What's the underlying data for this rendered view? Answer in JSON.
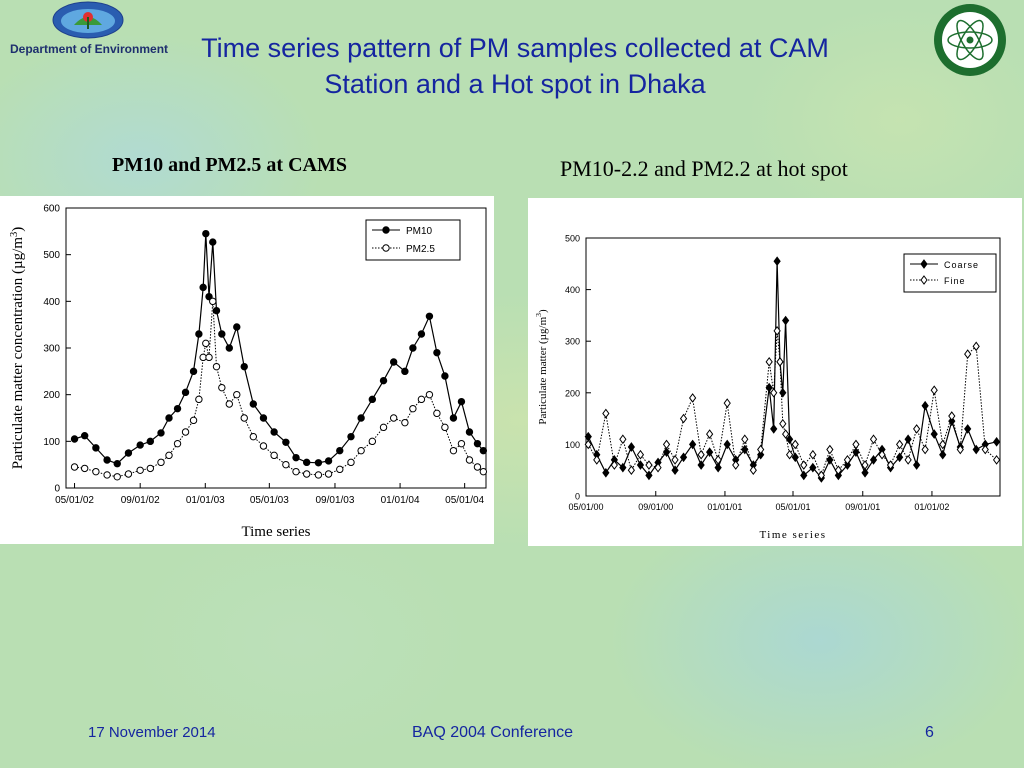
{
  "header": {
    "org_name": "Department of Environment",
    "title": "Time series pattern of PM samples collected at CAM Station and a Hot spot in Dhaka",
    "logo_left": "department-of-environment-logo",
    "logo_right": "atomic-energy-commission-logo"
  },
  "subtitles": {
    "left": "PM10 and PM2.5 at CAMS",
    "right": "PM10-2.2 and PM2.2 at hot spot"
  },
  "footer": {
    "date": "17 November 2014",
    "conference": "BAQ 2004 Conference",
    "page": "6"
  },
  "colors": {
    "title": "#1525a0",
    "footer": "#1525a0",
    "background": "#b9dfb3"
  },
  "chart_data": [
    {
      "type": "line",
      "xlabel": "Time series",
      "ylabel": "Particulate matter concentration (µg/m",
      "ylabel_sup": "3",
      "ylabel_end": ")",
      "ylim": [
        0,
        600
      ],
      "yticks": [
        0,
        100,
        200,
        300,
        400,
        500,
        600
      ],
      "xlim": [
        "2002-04-15",
        "2004-06-10"
      ],
      "xticks": [
        "2002-05-01",
        "2002-09-01",
        "2003-01-01",
        "2003-05-01",
        "2003-09-01",
        "2004-01-01",
        "2004-05-01"
      ],
      "xtick_labels": [
        "05/01/02",
        "09/01/02",
        "01/01/03",
        "05/01/03",
        "09/01/03",
        "01/01/04",
        "05/01/04"
      ],
      "grid": false,
      "legend_position": "top-right",
      "legend": [
        "PM10",
        "PM2.5"
      ],
      "series": [
        {
          "name": "PM10",
          "marker": "filled-circle",
          "line": "solid",
          "points": [
            [
              "2002-05-01",
              105
            ],
            [
              "2002-05-20",
              112
            ],
            [
              "2002-06-10",
              86
            ],
            [
              "2002-07-01",
              60
            ],
            [
              "2002-07-20",
              52
            ],
            [
              "2002-08-10",
              75
            ],
            [
              "2002-09-01",
              92
            ],
            [
              "2002-09-20",
              100
            ],
            [
              "2002-10-10",
              118
            ],
            [
              "2002-10-25",
              150
            ],
            [
              "2002-11-10",
              170
            ],
            [
              "2002-11-25",
              205
            ],
            [
              "2002-12-10",
              250
            ],
            [
              "2002-12-20",
              330
            ],
            [
              "2002-12-28",
              430
            ],
            [
              "2003-01-02",
              545
            ],
            [
              "2003-01-08",
              410
            ],
            [
              "2003-01-15",
              527
            ],
            [
              "2003-01-22",
              380
            ],
            [
              "2003-02-01",
              330
            ],
            [
              "2003-02-15",
              300
            ],
            [
              "2003-03-01",
              345
            ],
            [
              "2003-03-15",
              260
            ],
            [
              "2003-04-01",
              180
            ],
            [
              "2003-04-20",
              150
            ],
            [
              "2003-05-10",
              120
            ],
            [
              "2003-06-01",
              98
            ],
            [
              "2003-06-20",
              65
            ],
            [
              "2003-07-10",
              55
            ],
            [
              "2003-08-01",
              54
            ],
            [
              "2003-08-20",
              58
            ],
            [
              "2003-09-10",
              80
            ],
            [
              "2003-10-01",
              110
            ],
            [
              "2003-10-20",
              150
            ],
            [
              "2003-11-10",
              190
            ],
            [
              "2003-12-01",
              230
            ],
            [
              "2003-12-20",
              270
            ],
            [
              "2004-01-10",
              250
            ],
            [
              "2004-01-25",
              300
            ],
            [
              "2004-02-10",
              330
            ],
            [
              "2004-02-25",
              368
            ],
            [
              "2004-03-10",
              290
            ],
            [
              "2004-03-25",
              240
            ],
            [
              "2004-04-10",
              150
            ],
            [
              "2004-04-25",
              185
            ],
            [
              "2004-05-10",
              120
            ],
            [
              "2004-05-25",
              95
            ],
            [
              "2004-06-05",
              80
            ]
          ]
        },
        {
          "name": "PM2.5",
          "marker": "open-circle",
          "line": "dotted",
          "points": [
            [
              "2002-05-01",
              45
            ],
            [
              "2002-05-20",
              42
            ],
            [
              "2002-06-10",
              35
            ],
            [
              "2002-07-01",
              28
            ],
            [
              "2002-07-20",
              24
            ],
            [
              "2002-08-10",
              30
            ],
            [
              "2002-09-01",
              38
            ],
            [
              "2002-09-20",
              42
            ],
            [
              "2002-10-10",
              55
            ],
            [
              "2002-10-25",
              70
            ],
            [
              "2002-11-10",
              95
            ],
            [
              "2002-11-25",
              120
            ],
            [
              "2002-12-10",
              145
            ],
            [
              "2002-12-20",
              190
            ],
            [
              "2002-12-28",
              280
            ],
            [
              "2003-01-02",
              310
            ],
            [
              "2003-01-08",
              280
            ],
            [
              "2003-01-15",
              400
            ],
            [
              "2003-01-22",
              260
            ],
            [
              "2003-02-01",
              215
            ],
            [
              "2003-02-15",
              180
            ],
            [
              "2003-03-01",
              200
            ],
            [
              "2003-03-15",
              150
            ],
            [
              "2003-04-01",
              110
            ],
            [
              "2003-04-20",
              90
            ],
            [
              "2003-05-10",
              70
            ],
            [
              "2003-06-01",
              50
            ],
            [
              "2003-06-20",
              35
            ],
            [
              "2003-07-10",
              30
            ],
            [
              "2003-08-01",
              28
            ],
            [
              "2003-08-20",
              30
            ],
            [
              "2003-09-10",
              40
            ],
            [
              "2003-10-01",
              55
            ],
            [
              "2003-10-20",
              80
            ],
            [
              "2003-11-10",
              100
            ],
            [
              "2003-12-01",
              130
            ],
            [
              "2003-12-20",
              150
            ],
            [
              "2004-01-10",
              140
            ],
            [
              "2004-01-25",
              170
            ],
            [
              "2004-02-10",
              190
            ],
            [
              "2004-02-25",
              200
            ],
            [
              "2004-03-10",
              160
            ],
            [
              "2004-03-25",
              130
            ],
            [
              "2004-04-10",
              80
            ],
            [
              "2004-04-25",
              95
            ],
            [
              "2004-05-10",
              60
            ],
            [
              "2004-05-25",
              45
            ],
            [
              "2004-06-05",
              35
            ]
          ]
        }
      ]
    },
    {
      "type": "line",
      "xlabel": "Time series",
      "ylabel": "Particulate matter (µg/m",
      "ylabel_sup": "3",
      "ylabel_end": ")",
      "ylim": [
        0,
        500
      ],
      "yticks": [
        0,
        100,
        200,
        300,
        400,
        500
      ],
      "xlim": [
        "2000-05-01",
        "2002-05-01"
      ],
      "xticks": [
        "2000-05-01",
        "2000-09-01",
        "2001-01-01",
        "2001-05-01",
        "2001-09-01",
        "2002-01-01"
      ],
      "xtick_labels": [
        "05/01/00",
        "09/01/00",
        "01/01/01",
        "05/01/01",
        "09/01/01",
        "01/01/02"
      ],
      "grid": false,
      "legend_position": "top-right",
      "legend": [
        "Coarse",
        "Fine"
      ],
      "series": [
        {
          "name": "Coarse",
          "marker": "filled-diamond",
          "line": "solid",
          "points": [
            [
              "2000-05-05",
              115
            ],
            [
              "2000-05-20",
              80
            ],
            [
              "2000-06-05",
              45
            ],
            [
              "2000-06-20",
              70
            ],
            [
              "2000-07-05",
              55
            ],
            [
              "2000-07-20",
              95
            ],
            [
              "2000-08-05",
              60
            ],
            [
              "2000-08-20",
              40
            ],
            [
              "2000-09-05",
              65
            ],
            [
              "2000-09-20",
              85
            ],
            [
              "2000-10-05",
              50
            ],
            [
              "2000-10-20",
              75
            ],
            [
              "2000-11-05",
              100
            ],
            [
              "2000-11-20",
              60
            ],
            [
              "2000-12-05",
              85
            ],
            [
              "2000-12-20",
              55
            ],
            [
              "2001-01-05",
              100
            ],
            [
              "2001-01-20",
              70
            ],
            [
              "2001-02-05",
              90
            ],
            [
              "2001-02-20",
              60
            ],
            [
              "2001-03-05",
              80
            ],
            [
              "2001-03-20",
              210
            ],
            [
              "2001-03-28",
              130
            ],
            [
              "2001-04-03",
              455
            ],
            [
              "2001-04-08",
              260
            ],
            [
              "2001-04-13",
              200
            ],
            [
              "2001-04-18",
              340
            ],
            [
              "2001-04-25",
              110
            ],
            [
              "2001-05-05",
              75
            ],
            [
              "2001-05-20",
              40
            ],
            [
              "2001-06-05",
              55
            ],
            [
              "2001-06-20",
              35
            ],
            [
              "2001-07-05",
              70
            ],
            [
              "2001-07-20",
              40
            ],
            [
              "2001-08-05",
              60
            ],
            [
              "2001-08-20",
              85
            ],
            [
              "2001-09-05",
              45
            ],
            [
              "2001-09-20",
              70
            ],
            [
              "2001-10-05",
              90
            ],
            [
              "2001-10-20",
              55
            ],
            [
              "2001-11-05",
              75
            ],
            [
              "2001-11-20",
              110
            ],
            [
              "2001-12-05",
              60
            ],
            [
              "2001-12-20",
              175
            ],
            [
              "2002-01-05",
              120
            ],
            [
              "2002-01-20",
              80
            ],
            [
              "2002-02-05",
              145
            ],
            [
              "2002-02-20",
              95
            ],
            [
              "2002-03-05",
              130
            ],
            [
              "2002-03-20",
              90
            ],
            [
              "2002-04-05",
              100
            ],
            [
              "2002-04-25",
              105
            ]
          ]
        },
        {
          "name": "Fine",
          "marker": "open-diamond",
          "line": "dotted",
          "points": [
            [
              "2000-05-05",
              100
            ],
            [
              "2000-05-20",
              70
            ],
            [
              "2000-06-05",
              160
            ],
            [
              "2000-06-20",
              60
            ],
            [
              "2000-07-05",
              110
            ],
            [
              "2000-07-20",
              50
            ],
            [
              "2000-08-05",
              80
            ],
            [
              "2000-08-20",
              60
            ],
            [
              "2000-09-05",
              55
            ],
            [
              "2000-09-20",
              100
            ],
            [
              "2000-10-05",
              70
            ],
            [
              "2000-10-20",
              150
            ],
            [
              "2000-11-05",
              190
            ],
            [
              "2000-11-20",
              80
            ],
            [
              "2000-12-05",
              120
            ],
            [
              "2000-12-20",
              70
            ],
            [
              "2001-01-05",
              180
            ],
            [
              "2001-01-20",
              60
            ],
            [
              "2001-02-05",
              110
            ],
            [
              "2001-02-20",
              50
            ],
            [
              "2001-03-05",
              90
            ],
            [
              "2001-03-20",
              260
            ],
            [
              "2001-03-28",
              200
            ],
            [
              "2001-04-03",
              320
            ],
            [
              "2001-04-08",
              260
            ],
            [
              "2001-04-13",
              140
            ],
            [
              "2001-04-18",
              120
            ],
            [
              "2001-04-25",
              80
            ],
            [
              "2001-05-05",
              100
            ],
            [
              "2001-05-20",
              60
            ],
            [
              "2001-06-05",
              80
            ],
            [
              "2001-06-20",
              40
            ],
            [
              "2001-07-05",
              90
            ],
            [
              "2001-07-20",
              50
            ],
            [
              "2001-08-05",
              70
            ],
            [
              "2001-08-20",
              100
            ],
            [
              "2001-09-05",
              60
            ],
            [
              "2001-09-20",
              110
            ],
            [
              "2001-10-05",
              80
            ],
            [
              "2001-10-20",
              60
            ],
            [
              "2001-11-05",
              100
            ],
            [
              "2001-11-20",
              70
            ],
            [
              "2001-12-05",
              130
            ],
            [
              "2001-12-20",
              90
            ],
            [
              "2002-01-05",
              205
            ],
            [
              "2002-01-20",
              100
            ],
            [
              "2002-02-05",
              155
            ],
            [
              "2002-02-20",
              90
            ],
            [
              "2002-03-05",
              275
            ],
            [
              "2002-03-20",
              290
            ],
            [
              "2002-04-05",
              90
            ],
            [
              "2002-04-25",
              70
            ]
          ]
        }
      ]
    }
  ]
}
